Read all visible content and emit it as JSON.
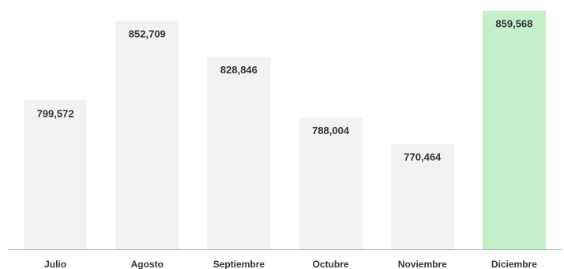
{
  "chart_data": {
    "type": "bar",
    "categories": [
      "Julio",
      "Agosto",
      "Septiembre",
      "Octubre",
      "Noviembre",
      "Diciembre"
    ],
    "values": [
      799572,
      852709,
      828846,
      788004,
      770464,
      859568
    ],
    "value_labels": [
      "799,572",
      "852,709",
      "828,846",
      "788,004",
      "770,464",
      "859,568"
    ],
    "colors": {
      "bar": "#f2f2f2",
      "highlight_bar": "#c3f0c8",
      "axis": "#b0b0b0",
      "text": "#333333"
    },
    "highlight_index": 5,
    "ylim": [
      700000,
      862000
    ],
    "grid": false,
    "legend": "none"
  }
}
